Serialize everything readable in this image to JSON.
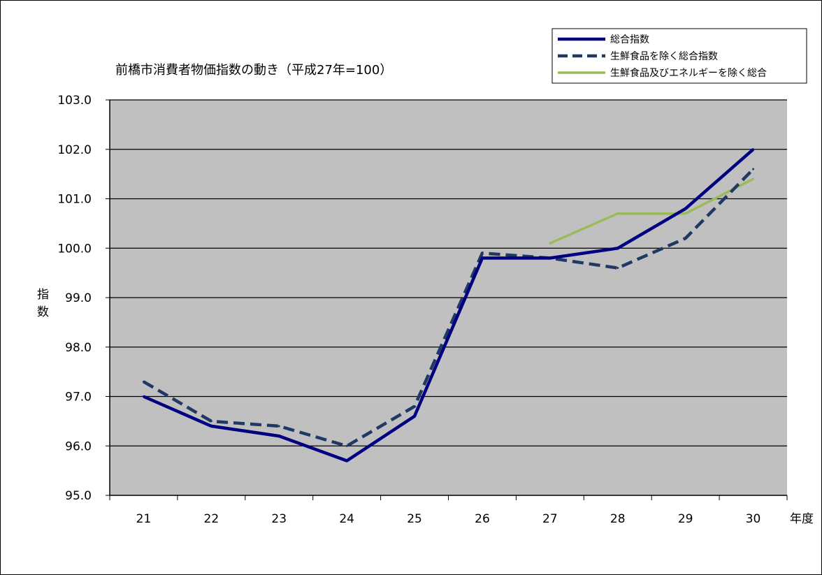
{
  "chart_data": {
    "type": "line",
    "title": "前橋市消費者物価指数の動き（平成27年=100）",
    "xlabel": "年度",
    "ylabel": "指数",
    "categories": [
      "21",
      "22",
      "23",
      "24",
      "25",
      "26",
      "27",
      "28",
      "29",
      "30"
    ],
    "ylim": [
      95.0,
      103.0
    ],
    "yticks": [
      "95.0",
      "96.0",
      "97.0",
      "98.0",
      "99.0",
      "100.0",
      "101.0",
      "102.0",
      "103.0"
    ],
    "grid": true,
    "legend_position": "top-right",
    "colors": {
      "plot_bg": "#c0c0c0",
      "series1": "#000080",
      "series2": "#1f3864",
      "series3": "#9bbb59"
    },
    "series": [
      {
        "name": "総合指数",
        "style": "solid",
        "values": [
          97.0,
          96.4,
          96.2,
          95.7,
          96.6,
          99.8,
          99.8,
          100.0,
          100.8,
          102.0
        ]
      },
      {
        "name": "生鮮食品を除く総合指数",
        "style": "dashed",
        "values": [
          97.3,
          96.5,
          96.4,
          96.0,
          96.8,
          99.9,
          99.8,
          99.6,
          100.2,
          101.6
        ]
      },
      {
        "name": "生鮮食品及びエネルギーを除く総合",
        "style": "solid",
        "values": [
          null,
          null,
          null,
          null,
          null,
          null,
          100.1,
          100.7,
          100.7,
          101.4
        ]
      }
    ]
  }
}
